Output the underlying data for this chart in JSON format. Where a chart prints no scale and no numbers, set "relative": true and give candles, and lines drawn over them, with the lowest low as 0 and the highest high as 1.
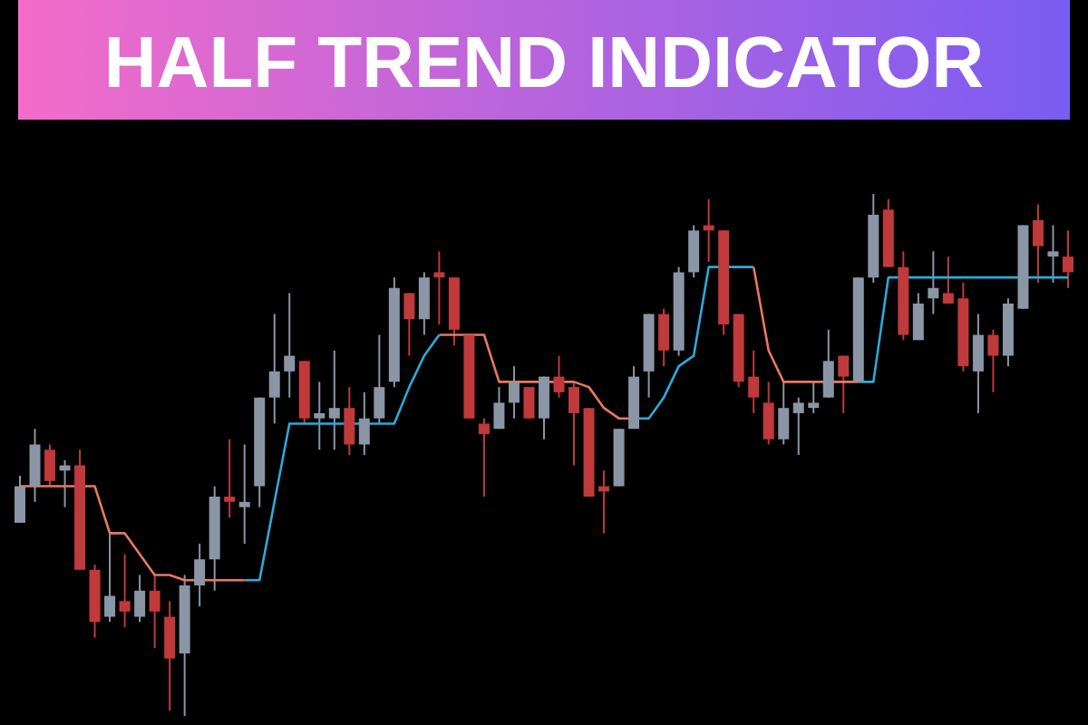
{
  "chart_data": {
    "type": "candlestick",
    "title": "HALF TREND INDICATOR",
    "relative": true,
    "categories": [
      null,
      null,
      null,
      null,
      null,
      null,
      null,
      null,
      null,
      null,
      null,
      null,
      null,
      null,
      null,
      null,
      null,
      null,
      null,
      null,
      null,
      null,
      null,
      null,
      null,
      null,
      null,
      null,
      null,
      null,
      null,
      null,
      null,
      null,
      null,
      null,
      null,
      null,
      null,
      null,
      null,
      null,
      null,
      null,
      null,
      null,
      null,
      null,
      null,
      null,
      null,
      null,
      null,
      null,
      null,
      null,
      null,
      null,
      null,
      null,
      null,
      null,
      null,
      null,
      null,
      null,
      null,
      null,
      null,
      null,
      null
    ],
    "ohlc": [
      [
        0.37,
        0.46,
        0.37,
        0.44
      ],
      [
        0.44,
        0.55,
        0.41,
        0.52
      ],
      [
        0.51,
        0.52,
        0.44,
        0.45
      ],
      [
        0.47,
        0.49,
        0.4,
        0.48
      ],
      [
        0.48,
        0.51,
        0.28,
        0.28
      ],
      [
        0.28,
        0.29,
        0.15,
        0.18
      ],
      [
        0.19,
        0.35,
        0.18,
        0.23
      ],
      [
        0.22,
        0.31,
        0.17,
        0.2
      ],
      [
        0.19,
        0.27,
        0.18,
        0.24
      ],
      [
        0.24,
        0.27,
        0.13,
        0.2
      ],
      [
        0.19,
        0.22,
        0.01,
        0.11
      ],
      [
        0.12,
        0.27,
        0,
        0.25
      ],
      [
        0.25,
        0.33,
        0.21,
        0.3
      ],
      [
        0.3,
        0.44,
        0.24,
        0.42
      ],
      [
        0.42,
        0.53,
        0.38,
        0.41
      ],
      [
        0.4,
        0.52,
        0.33,
        0.41
      ],
      [
        0.44,
        0.61,
        0.4,
        0.61
      ],
      [
        0.61,
        0.77,
        0.56,
        0.66
      ],
      [
        0.66,
        0.81,
        0.61,
        0.69
      ],
      [
        0.68,
        0.68,
        0.56,
        0.57
      ],
      [
        0.57,
        0.64,
        0.51,
        0.58
      ],
      [
        0.57,
        0.7,
        0.51,
        0.59
      ],
      [
        0.59,
        0.63,
        0.5,
        0.52
      ],
      [
        0.52,
        0.62,
        0.5,
        0.57
      ],
      [
        0.57,
        0.73,
        0.56,
        0.63
      ],
      [
        0.64,
        0.84,
        0.63,
        0.82
      ],
      [
        0.81,
        0.81,
        0.69,
        0.76
      ],
      [
        0.76,
        0.85,
        0.73,
        0.84
      ],
      [
        0.85,
        0.89,
        0.75,
        0.84
      ],
      [
        0.84,
        0.84,
        0.71,
        0.74
      ],
      [
        0.73,
        0.73,
        0.57,
        0.57
      ],
      [
        0.56,
        0.57,
        0.42,
        0.54
      ],
      [
        0.55,
        0.63,
        0.55,
        0.6
      ],
      [
        0.6,
        0.67,
        0.57,
        0.64
      ],
      [
        0.63,
        0.63,
        0.57,
        0.57
      ],
      [
        0.57,
        0.65,
        0.53,
        0.65
      ],
      [
        0.65,
        0.69,
        0.61,
        0.62
      ],
      [
        0.63,
        0.64,
        0.48,
        0.58
      ],
      [
        0.59,
        0.59,
        0.42,
        0.42
      ],
      [
        0.44,
        0.47,
        0.35,
        0.43
      ],
      [
        0.44,
        0.55,
        0.44,
        0.55
      ],
      [
        0.55,
        0.67,
        0.55,
        0.65
      ],
      [
        0.66,
        0.77,
        0.61,
        0.77
      ],
      [
        0.77,
        0.78,
        0.67,
        0.7
      ],
      [
        0.7,
        0.86,
        0.69,
        0.85
      ],
      [
        0.85,
        0.94,
        0.84,
        0.93
      ],
      [
        0.94,
        0.99,
        0.87,
        0.93
      ],
      [
        0.93,
        0.93,
        0.73,
        0.75
      ],
      [
        0.77,
        0.77,
        0.63,
        0.64
      ],
      [
        0.65,
        0.7,
        0.58,
        0.61
      ],
      [
        0.6,
        0.64,
        0.52,
        0.53
      ],
      [
        0.53,
        0.64,
        0.52,
        0.59
      ],
      [
        0.58,
        0.61,
        0.5,
        0.6
      ],
      [
        0.59,
        0.64,
        0.58,
        0.6
      ],
      [
        0.61,
        0.74,
        0.61,
        0.68
      ],
      [
        0.69,
        0.69,
        0.58,
        0.65
      ],
      [
        0.64,
        0.84,
        0.64,
        0.84
      ],
      [
        0.84,
        1,
        0.83,
        0.96
      ],
      [
        0.97,
        0.99,
        0.86,
        0.86
      ],
      [
        0.86,
        0.89,
        0.72,
        0.73
      ],
      [
        0.72,
        0.81,
        0.72,
        0.79
      ],
      [
        0.8,
        0.89,
        0.77,
        0.82
      ],
      [
        0.81,
        0.88,
        0.79,
        0.79
      ],
      [
        0.8,
        0.83,
        0.66,
        0.67
      ],
      [
        0.66,
        0.77,
        0.58,
        0.73
      ],
      [
        0.73,
        0.74,
        0.62,
        0.69
      ],
      [
        0.69,
        0.8,
        0.67,
        0.79
      ],
      [
        0.78,
        0.94,
        0.78,
        0.94
      ],
      [
        0.95,
        0.98,
        0.83,
        0.9
      ],
      [
        0.88,
        0.94,
        0.83,
        0.89
      ],
      [
        0.88,
        0.93,
        0.82,
        0.85
      ]
    ],
    "colors": [
      "#8a95a5",
      "#8a95a5",
      "#c0393b",
      "#8a95a5",
      "#c0393b",
      "#c0393b",
      "#8a95a5",
      "#c0393b",
      "#8a95a5",
      "#c0393b",
      "#c0393b",
      "#8a95a5",
      "#8a95a5",
      "#8a95a5",
      "#c0393b",
      "#8a95a5",
      "#8a95a5",
      "#8a95a5",
      "#8a95a5",
      "#c0393b",
      "#8a95a5",
      "#8a95a5",
      "#c0393b",
      "#8a95a5",
      "#8a95a5",
      "#8a95a5",
      "#c0393b",
      "#8a95a5",
      "#c0393b",
      "#c0393b",
      "#c0393b",
      "#c0393b",
      "#8a95a5",
      "#8a95a5",
      "#c0393b",
      "#8a95a5",
      "#c0393b",
      "#c0393b",
      "#c0393b",
      "#c0393b",
      "#8a95a5",
      "#8a95a5",
      "#8a95a5",
      "#c0393b",
      "#8a95a5",
      "#8a95a5",
      "#c0393b",
      "#c0393b",
      "#c0393b",
      "#c0393b",
      "#c0393b",
      "#8a95a5",
      "#8a95a5",
      "#8a95a5",
      "#8a95a5",
      "#c0393b",
      "#8a95a5",
      "#8a95a5",
      "#c0393b",
      "#c0393b",
      "#8a95a5",
      "#8a95a5",
      "#c0393b",
      "#c0393b",
      "#8a95a5",
      "#c0393b",
      "#8a95a5",
      "#8a95a5",
      "#c0393b",
      "#8a95a5",
      "#c0393b"
    ],
    "series": [
      {
        "type": "line",
        "color": "#e8795f",
        "values": [
          0.44,
          0.44,
          0.44,
          0.44,
          0.44,
          0.44,
          0.35,
          0.35,
          0.31,
          0.27,
          0.27,
          0.26,
          0.26,
          0.26,
          0.26,
          0.26,
          null,
          null,
          null,
          null,
          null,
          null,
          null,
          null,
          null,
          null,
          null,
          null,
          0.73,
          0.73,
          0.73,
          0.73,
          0.64,
          0.64,
          0.64,
          0.64,
          0.64,
          0.64,
          0.63,
          0.59,
          0.57,
          0.57,
          null,
          null,
          null,
          null,
          null,
          null,
          null,
          0.86,
          0.7,
          0.64,
          0.64,
          0.64,
          0.64,
          0.64,
          0.64,
          null,
          null,
          null,
          null,
          null,
          null,
          null,
          null,
          null,
          null,
          null,
          null,
          null,
          null
        ]
      },
      {
        "type": "line",
        "color": "#2fa9d8",
        "values": [
          null,
          null,
          null,
          null,
          null,
          null,
          null,
          null,
          null,
          null,
          null,
          null,
          null,
          null,
          null,
          0.26,
          0.26,
          0.41,
          0.56,
          0.56,
          0.56,
          0.56,
          0.56,
          0.56,
          0.56,
          0.56,
          0.63,
          0.69,
          0.73,
          null,
          null,
          null,
          null,
          null,
          null,
          null,
          null,
          null,
          null,
          null,
          null,
          0.57,
          0.57,
          0.61,
          0.67,
          0.69,
          0.86,
          0.86,
          0.86,
          0.86,
          null,
          null,
          null,
          null,
          null,
          null,
          0.64,
          0.64,
          0.84,
          0.84,
          0.84,
          0.84,
          0.84,
          0.84,
          0.84,
          0.84,
          0.84,
          0.84,
          0.84,
          0.84,
          0.84
        ]
      }
    ]
  }
}
